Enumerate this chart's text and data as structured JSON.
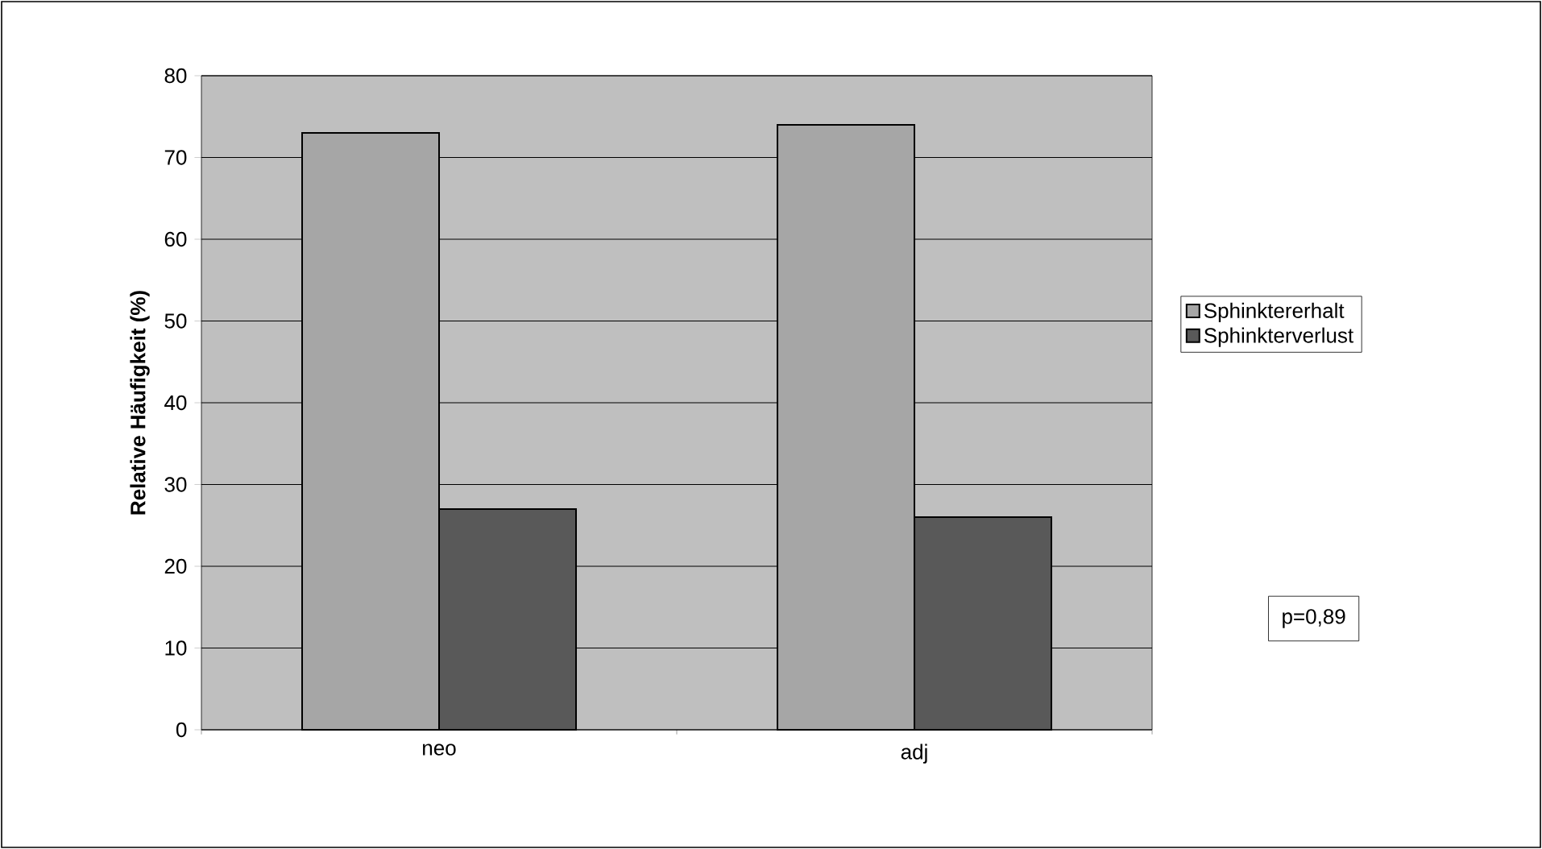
{
  "chart_data": {
    "type": "bar",
    "ylabel": "Relative Häufigkeit (%)",
    "categories": [
      "neo",
      "adj"
    ],
    "series": [
      {
        "name": "Sphinktererhalt",
        "color": "#a6a6a6",
        "values": [
          73,
          74
        ]
      },
      {
        "name": "Sphinkterverlust",
        "color": "#595959",
        "values": [
          27,
          26
        ]
      }
    ],
    "ylim": [
      0,
      80
    ],
    "yticks": [
      0,
      10,
      20,
      30,
      40,
      50,
      60,
      70,
      80
    ],
    "grid": "y",
    "legend": "right",
    "annotations": [
      "p=0,89"
    ]
  }
}
